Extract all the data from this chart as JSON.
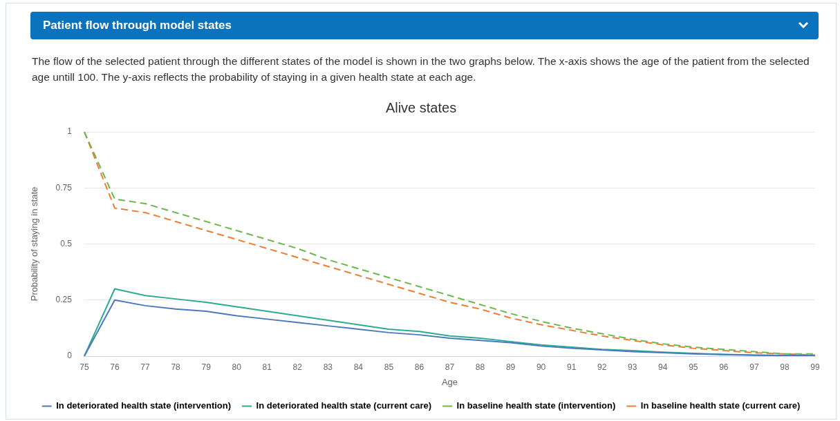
{
  "chart_data": {
    "type": "line",
    "title": "Alive states",
    "xlabel": "Age",
    "ylabel": "Probability of staying in state",
    "annotations": [
      "Patient flow through model states",
      "The flow of the selected patient through the different states of the model is shown in the two graphs below. The x-axis shows the age of the patient from the selected age untill 100. The y-axis reflects the probability of staying in a given health state at each age."
    ],
    "categories": [
      "75",
      "76",
      "77",
      "78",
      "79",
      "80",
      "81",
      "82",
      "83",
      "84",
      "85",
      "86",
      "87",
      "88",
      "89",
      "90",
      "91",
      "92",
      "93",
      "94",
      "95",
      "96",
      "97",
      "98",
      "99"
    ],
    "ylim": [
      0,
      1
    ],
    "yticks": [
      0,
      0.25,
      0.5,
      0.75,
      1
    ],
    "grid": "y",
    "legend": "bottom",
    "marker": "none",
    "series": [
      {
        "name": "In deteriorated health state (intervention)",
        "color": "#4a78c0",
        "line_style": "solid",
        "values": [
          0,
          0.25,
          0.225,
          0.21,
          0.2,
          0.18,
          0.165,
          0.15,
          0.135,
          0.12,
          0.105,
          0.095,
          0.08,
          0.07,
          0.06,
          0.045,
          0.035,
          0.028,
          0.02,
          0.015,
          0.01,
          0.007,
          0.004,
          0.003,
          0.002
        ]
      },
      {
        "name": "In deteriorated health state (current care)",
        "color": "#2bac8e",
        "line_style": "solid",
        "values": [
          0,
          0.3,
          0.27,
          0.255,
          0.24,
          0.22,
          0.2,
          0.18,
          0.16,
          0.14,
          0.12,
          0.11,
          0.09,
          0.08,
          0.065,
          0.05,
          0.04,
          0.03,
          0.025,
          0.018,
          0.012,
          0.008,
          0.005,
          0.003,
          0.002
        ]
      },
      {
        "name": "In baseline health state (intervention)",
        "color": "#6ab84e",
        "line_style": "dashed",
        "values": [
          1,
          0.7,
          0.68,
          0.64,
          0.6,
          0.56,
          0.52,
          0.48,
          0.43,
          0.39,
          0.35,
          0.31,
          0.27,
          0.23,
          0.19,
          0.155,
          0.125,
          0.1,
          0.075,
          0.055,
          0.04,
          0.03,
          0.02,
          0.01,
          0.01
        ]
      },
      {
        "name": "In baseline health state (current care)",
        "color": "#ee7d33",
        "line_style": "dashed",
        "values": [
          1,
          0.66,
          0.64,
          0.6,
          0.56,
          0.52,
          0.48,
          0.44,
          0.4,
          0.36,
          0.32,
          0.28,
          0.24,
          0.21,
          0.17,
          0.14,
          0.115,
          0.09,
          0.07,
          0.05,
          0.035,
          0.025,
          0.015,
          0.01,
          0.005
        ]
      }
    ]
  }
}
